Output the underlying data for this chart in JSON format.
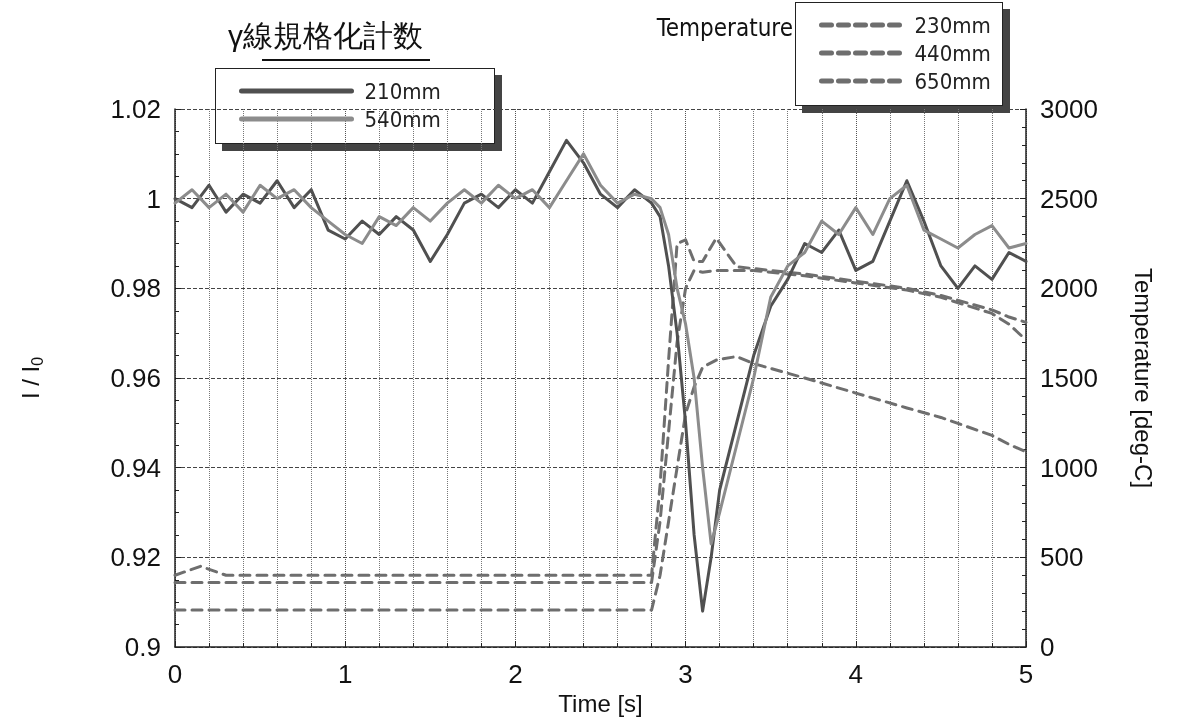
{
  "chart_data": {
    "type": "line",
    "xlabel": "Time [s]",
    "ylabel": "I / I$_{0}$",
    "y2label": "Temperature [deg-C]",
    "legend_title": "γ線規格化計数",
    "annotations": [
      "Temperature"
    ],
    "xlim": [
      0,
      5
    ],
    "xticks": [
      0,
      1,
      2,
      3,
      4,
      5
    ],
    "ylim": [
      0.9,
      1.02
    ],
    "yticks": [
      0.9,
      0.92,
      0.94,
      0.96,
      0.98,
      1,
      1.02
    ],
    "y2lim": [
      0,
      3000
    ],
    "y2ticks": [
      0,
      500,
      1000,
      1500,
      2000,
      2500,
      3000
    ],
    "grid": true,
    "legend": "top",
    "marker": "none",
    "series": [
      {
        "name": "210mm",
        "color": "#505050",
        "line_style": "solid",
        "x": [
          0,
          0.1,
          0.2,
          0.3,
          0.4,
          0.5,
          0.6,
          0.7,
          0.8,
          0.9,
          1.0,
          1.1,
          1.2,
          1.3,
          1.4,
          1.5,
          1.6,
          1.7,
          1.8,
          1.9,
          2.0,
          2.1,
          2.2,
          2.3,
          2.4,
          2.5,
          2.6,
          2.7,
          2.8,
          2.85,
          2.9,
          2.95,
          3.0,
          3.05,
          3.1,
          3.15,
          3.2,
          3.3,
          3.4,
          3.5,
          3.6,
          3.7,
          3.8,
          3.9,
          4.0,
          4.1,
          4.2,
          4.3,
          4.4,
          4.5,
          4.6,
          4.7,
          4.8,
          4.9,
          5.0
        ],
        "values": [
          1.0,
          0.998,
          1.003,
          0.997,
          1.001,
          0.999,
          1.004,
          0.998,
          1.002,
          0.993,
          0.991,
          0.995,
          0.992,
          0.996,
          0.993,
          0.986,
          0.992,
          0.999,
          1.001,
          0.998,
          1.002,
          0.999,
          1.006,
          1.013,
          1.008,
          1.001,
          0.998,
          1.002,
          0.999,
          0.996,
          0.985,
          0.97,
          0.95,
          0.925,
          0.908,
          0.92,
          0.935,
          0.95,
          0.965,
          0.976,
          0.982,
          0.99,
          0.988,
          0.993,
          0.984,
          0.986,
          0.995,
          1.004,
          0.995,
          0.985,
          0.98,
          0.985,
          0.982,
          0.988,
          0.986
        ]
      },
      {
        "name": "540mm",
        "color": "#8c8c8c",
        "line_style": "solid",
        "x": [
          0,
          0.1,
          0.2,
          0.3,
          0.4,
          0.5,
          0.6,
          0.7,
          0.8,
          0.9,
          1.0,
          1.1,
          1.2,
          1.3,
          1.4,
          1.5,
          1.6,
          1.7,
          1.8,
          1.9,
          2.0,
          2.1,
          2.2,
          2.3,
          2.4,
          2.5,
          2.6,
          2.7,
          2.8,
          2.85,
          2.9,
          2.95,
          3.0,
          3.05,
          3.1,
          3.15,
          3.2,
          3.3,
          3.4,
          3.5,
          3.6,
          3.7,
          3.8,
          3.9,
          4.0,
          4.1,
          4.2,
          4.3,
          4.4,
          4.5,
          4.6,
          4.7,
          4.8,
          4.9,
          5.0
        ],
        "values": [
          0.999,
          1.002,
          0.998,
          1.001,
          0.997,
          1.003,
          1.0,
          1.002,
          0.998,
          0.995,
          0.992,
          0.99,
          0.996,
          0.994,
          0.998,
          0.995,
          0.999,
          1.002,
          0.999,
          1.003,
          1.0,
          1.002,
          0.998,
          1.004,
          1.01,
          1.003,
          0.999,
          1.001,
          1.0,
          0.998,
          0.992,
          0.98,
          0.972,
          0.96,
          0.94,
          0.923,
          0.93,
          0.945,
          0.96,
          0.978,
          0.985,
          0.988,
          0.995,
          0.992,
          0.998,
          0.992,
          1.0,
          1.003,
          0.993,
          0.991,
          0.989,
          0.992,
          0.994,
          0.989,
          0.99
        ]
      },
      {
        "name": "230mm",
        "color": "#6e6e6e",
        "line_style": "dashed",
        "axis": "y2",
        "x": [
          0,
          0.15,
          0.3,
          2.8,
          2.85,
          2.9,
          2.95,
          3.0,
          3.05,
          3.1,
          3.18,
          3.3,
          3.4,
          3.7,
          4.0,
          4.3,
          4.5,
          4.8,
          4.9,
          5.0
        ],
        "values": [
          400,
          450,
          400,
          400,
          900,
          1600,
          2250,
          2270,
          2150,
          2150,
          2280,
          2120,
          2110,
          2080,
          2040,
          2000,
          1960,
          1880,
          1840,
          1810
        ]
      },
      {
        "name": "440mm",
        "color": "#6e6e6e",
        "line_style": "dashed",
        "axis": "y2",
        "x": [
          0,
          0.15,
          0.3,
          2.8,
          2.85,
          2.9,
          2.95,
          3.0,
          3.05,
          3.1,
          3.18,
          3.3,
          3.4,
          3.7,
          4.0,
          4.3,
          4.5,
          4.8,
          4.9,
          5.0
        ],
        "values": [
          360,
          360,
          360,
          360,
          700,
          1200,
          1700,
          2000,
          2100,
          2090,
          2100,
          2100,
          2100,
          2070,
          2030,
          1990,
          1950,
          1860,
          1800,
          1712
        ]
      },
      {
        "name": "650mm",
        "color": "#6e6e6e",
        "line_style": "dashed",
        "axis": "y2",
        "x": [
          0,
          0.15,
          0.3,
          2.8,
          2.85,
          2.9,
          2.95,
          3.0,
          3.05,
          3.1,
          3.18,
          3.3,
          3.4,
          3.7,
          4.0,
          4.3,
          4.5,
          4.8,
          4.9,
          5.0
        ],
        "values": [
          206,
          206,
          206,
          206,
          400,
          700,
          1000,
          1300,
          1450,
          1560,
          1600,
          1620,
          1580,
          1500,
          1416,
          1333,
          1280,
          1180,
          1130,
          1088
        ]
      }
    ]
  }
}
